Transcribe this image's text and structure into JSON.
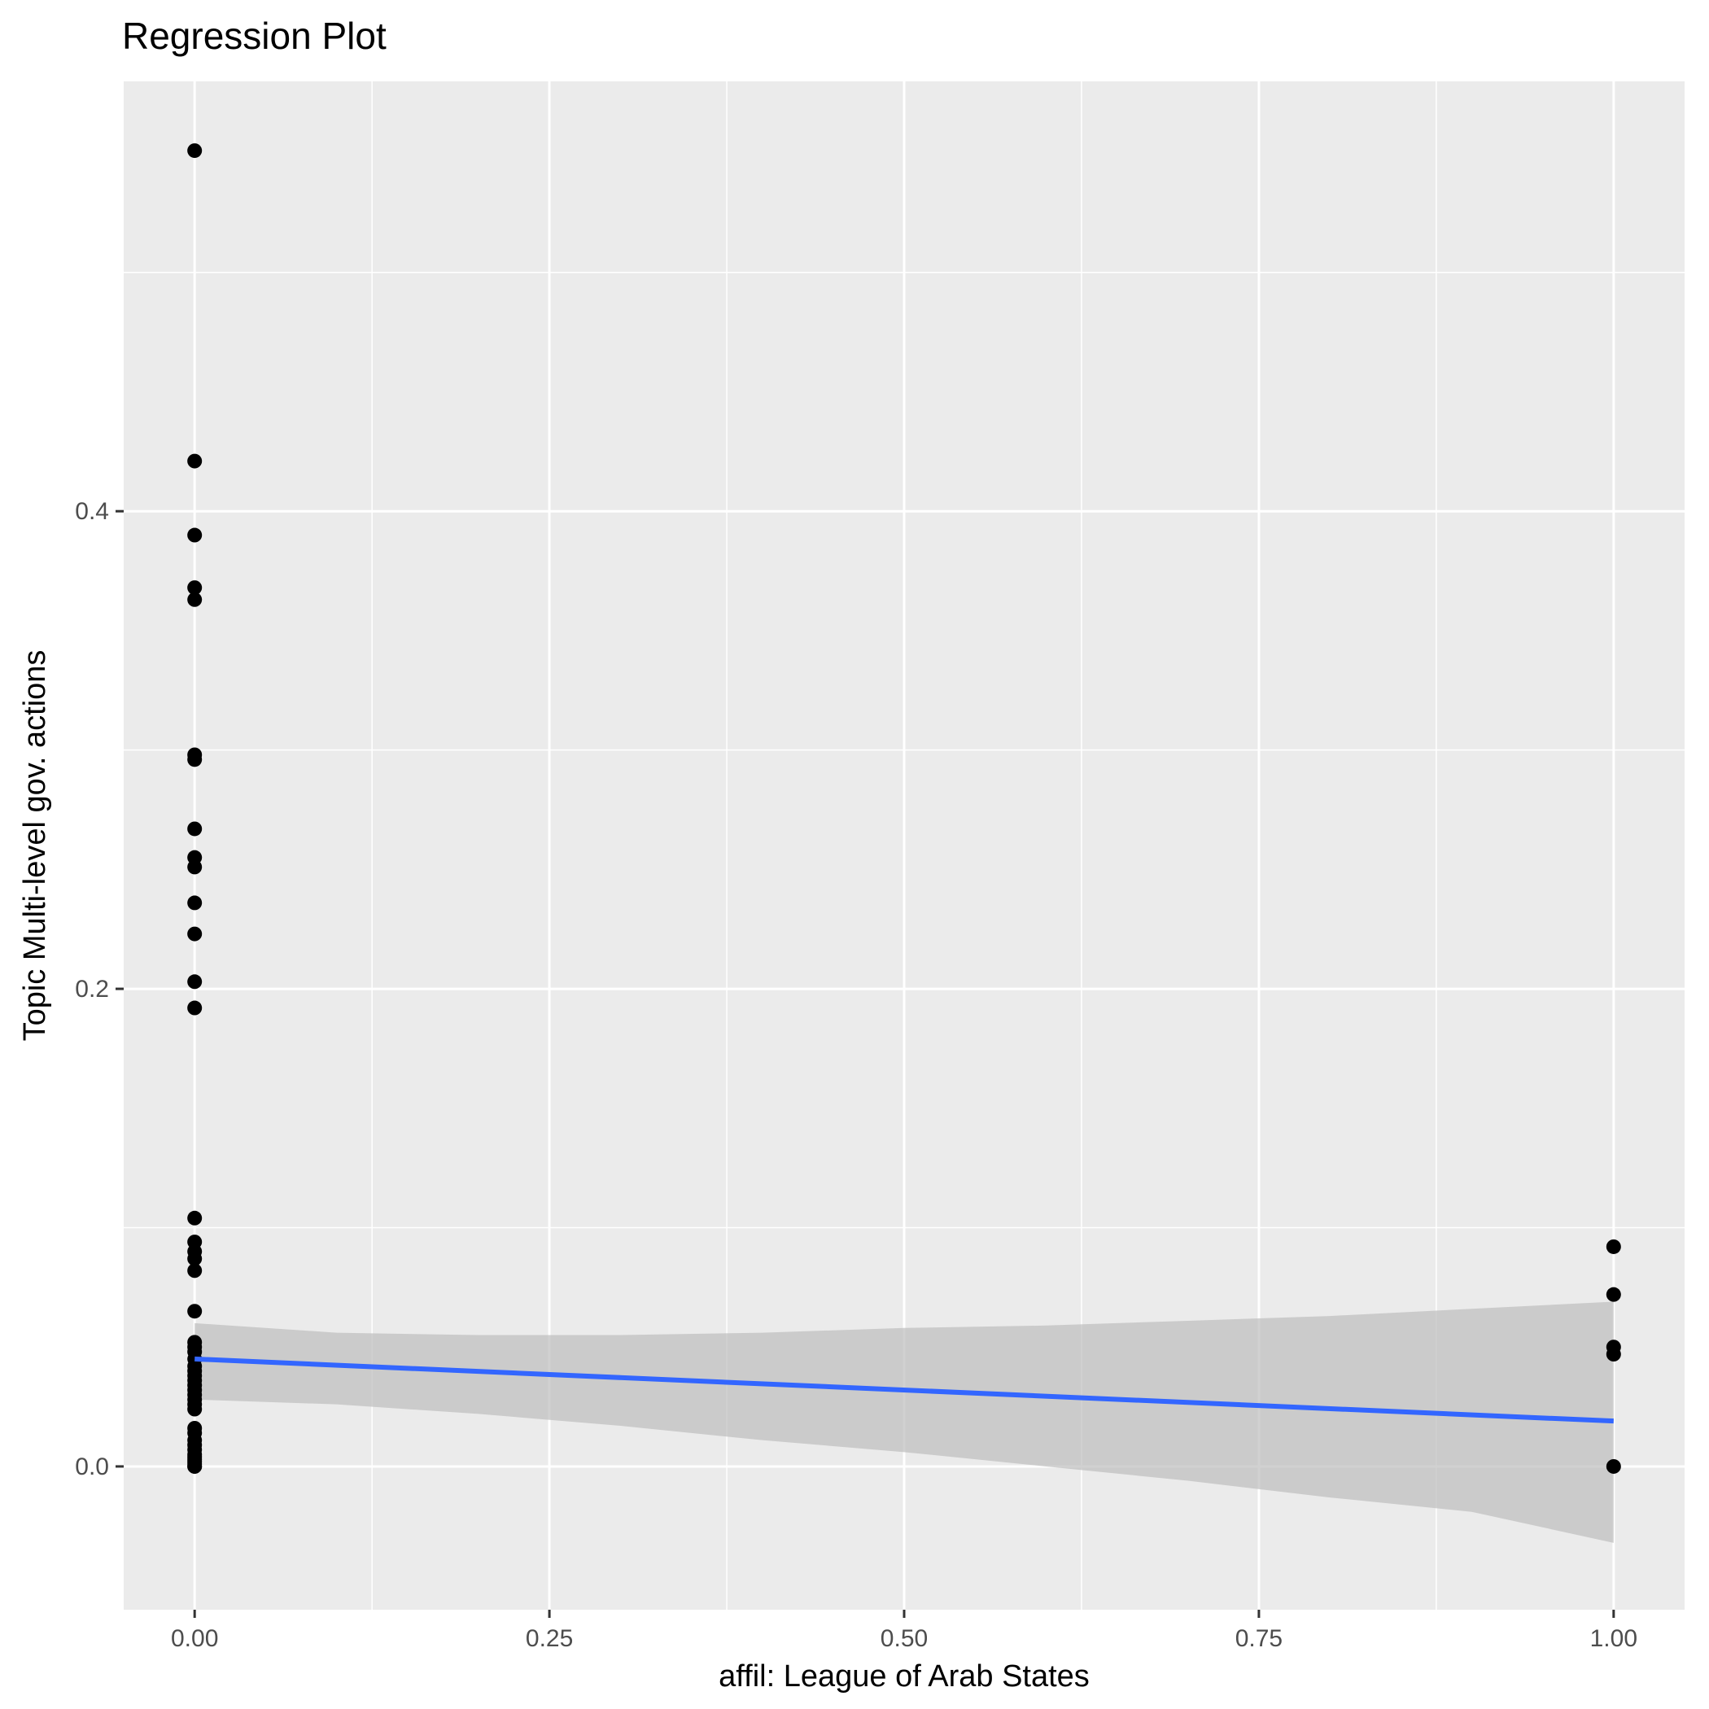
{
  "chart_data": {
    "type": "scatter",
    "title": "Regression Plot",
    "xlabel": "affil: League of Arab States",
    "ylabel": "Topic Multi-level gov. actions",
    "xlim": [
      -0.05,
      1.05
    ],
    "ylim": [
      -0.06,
      0.58
    ],
    "x_ticks": [
      0.0,
      0.25,
      0.5,
      0.75,
      1.0
    ],
    "x_tick_labels": [
      "0.00",
      "0.25",
      "0.50",
      "0.75",
      "1.00"
    ],
    "y_ticks": [
      0.0,
      0.2,
      0.4
    ],
    "y_tick_labels": [
      "0.0",
      "0.2",
      "0.4"
    ],
    "grid": true,
    "colors": {
      "panel": "#ebebeb",
      "grid": "#ffffff",
      "points": "#000000",
      "line": "#3366ff",
      "ribbon": "#bebebe"
    },
    "points": {
      "x": [
        0,
        0,
        0,
        0,
        0,
        0,
        0,
        0,
        0,
        0,
        0,
        0,
        0,
        0,
        0,
        0,
        0,
        0,
        0,
        0,
        0,
        0,
        0,
        0,
        0,
        0,
        0,
        0,
        0,
        0,
        0,
        0,
        0,
        0,
        0,
        0,
        0,
        0,
        0,
        0,
        0,
        0,
        0,
        0,
        0,
        0,
        1,
        1,
        1,
        1,
        1
      ],
      "y": [
        0.551,
        0.421,
        0.39,
        0.368,
        0.363,
        0.298,
        0.296,
        0.267,
        0.255,
        0.251,
        0.236,
        0.223,
        0.203,
        0.192,
        0.104,
        0.094,
        0.09,
        0.087,
        0.082,
        0.065,
        0.052,
        0.05,
        0.048,
        0.045,
        0.042,
        0.04,
        0.038,
        0.036,
        0.034,
        0.032,
        0.03,
        0.028,
        0.026,
        0.024,
        0.016,
        0.014,
        0.011,
        0.009,
        0.007,
        0.005,
        0.004,
        0.003,
        0.002,
        0.001,
        0.0,
        0.0,
        0.092,
        0.072,
        0.05,
        0.047,
        0.0
      ]
    },
    "regression": {
      "x": [
        0.0,
        1.0
      ],
      "y": [
        0.045,
        0.019
      ],
      "ci_x": [
        0.0,
        0.1,
        0.2,
        0.3,
        0.4,
        0.5,
        0.6,
        0.7,
        0.8,
        0.9,
        1.0
      ],
      "ci_lower": [
        0.028,
        0.026,
        0.022,
        0.017,
        0.011,
        0.006,
        0.0,
        -0.006,
        -0.013,
        -0.019,
        -0.032
      ],
      "ci_upper": [
        0.06,
        0.056,
        0.055,
        0.055,
        0.056,
        0.058,
        0.059,
        0.061,
        0.063,
        0.066,
        0.069
      ]
    }
  }
}
